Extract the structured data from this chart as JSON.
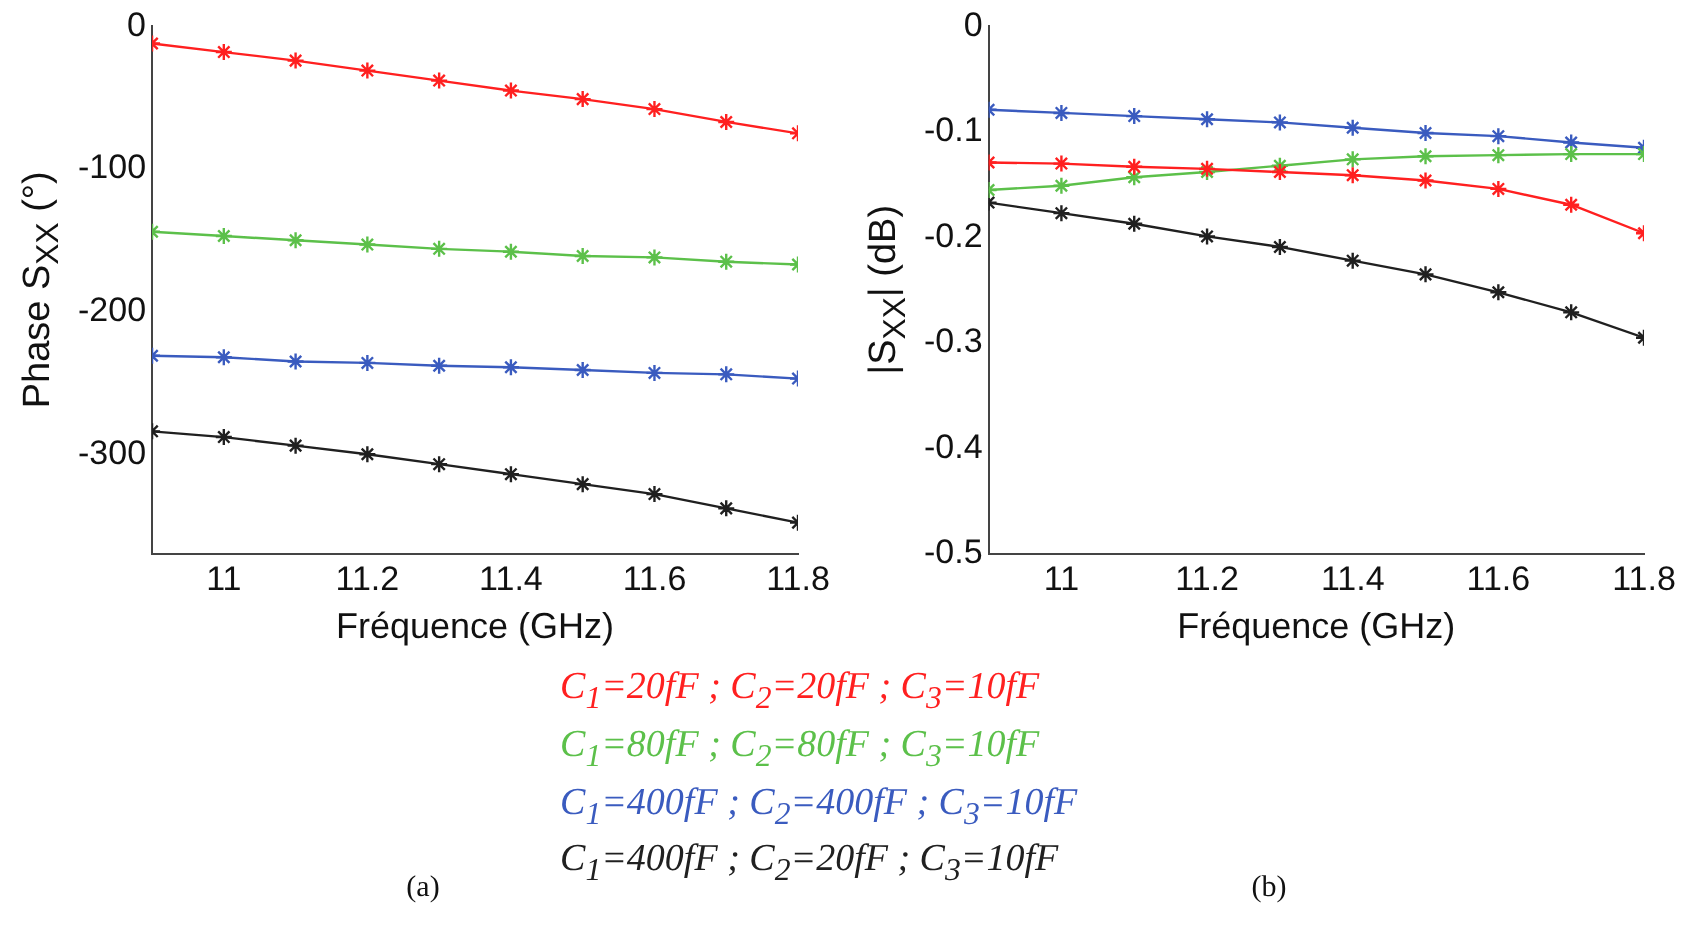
{
  "chart_data": [
    {
      "type": "line",
      "xlabel": "Fréquence (GHz)",
      "ylabel": "Phase S$_{XX}$ (°)",
      "annotations": [
        "(a)"
      ],
      "x": [
        10.9,
        11.0,
        11.1,
        11.2,
        11.3,
        11.4,
        11.5,
        11.6,
        11.7,
        11.8
      ],
      "xlim": [
        10.9,
        11.8
      ],
      "xticks": [
        11,
        11.2,
        11.4,
        11.6,
        11.8
      ],
      "ylim": [
        -370,
        0
      ],
      "yticks": [
        -300,
        -200,
        -100,
        0
      ],
      "marker": "cross",
      "line_style": "solid",
      "legend": "bottom",
      "series": [
        {
          "name": "C$_{1}$=20fF ; C$_{2}$=20fF ; C$_{3}$=10fF",
          "color": "#ff2020",
          "values": [
            -12,
            -18,
            -24,
            -31,
            -38,
            -45,
            -51,
            -58,
            -67,
            -75
          ]
        },
        {
          "name": "C$_{1}$=80fF ; C$_{2}$=80fF ; C$_{3}$=10fF",
          "color": "#5cc04a",
          "values": [
            -144,
            -147,
            -150,
            -153,
            -156,
            -158,
            -161,
            -162,
            -165,
            -167
          ]
        },
        {
          "name": "C$_{1}$=400fF ; C$_{2}$=400fF ; C$_{3}$=10fF",
          "color": "#3a5bbf",
          "values": [
            -231,
            -232,
            -235,
            -236,
            -238,
            -239,
            -241,
            -243,
            -244,
            -247
          ]
        },
        {
          "name": "C$_{1}$=400fF ; C$_{2}$=20fF ; C$_{3}$=10fF",
          "color": "#202020",
          "values": [
            -284,
            -288,
            -294,
            -300,
            -307,
            -314,
            -321,
            -328,
            -338,
            -348
          ]
        }
      ]
    },
    {
      "type": "line",
      "xlabel": "Fréquence (GHz)",
      "ylabel": "|S$_{XX}$| (dB)",
      "annotations": [
        "(b)"
      ],
      "x": [
        10.9,
        11.0,
        11.1,
        11.2,
        11.3,
        11.4,
        11.5,
        11.6,
        11.7,
        11.8
      ],
      "xlim": [
        10.9,
        11.8
      ],
      "xticks": [
        11,
        11.2,
        11.4,
        11.6,
        11.8
      ],
      "ylim": [
        -0.5,
        0
      ],
      "yticks": [
        -0.5,
        -0.4,
        -0.3,
        -0.2,
        -0.1,
        0
      ],
      "marker": "cross",
      "line_style": "solid",
      "series": [
        {
          "color": "#ff2020",
          "values": [
            -0.129,
            -0.13,
            -0.133,
            -0.135,
            -0.138,
            -0.141,
            -0.146,
            -0.154,
            -0.169,
            -0.196
          ]
        },
        {
          "color": "#5cc04a",
          "values": [
            -0.155,
            -0.151,
            -0.143,
            -0.138,
            -0.132,
            -0.126,
            -0.123,
            -0.122,
            -0.121,
            -0.121
          ]
        },
        {
          "color": "#3a5bbf",
          "values": [
            -0.079,
            -0.082,
            -0.085,
            -0.088,
            -0.091,
            -0.096,
            -0.101,
            -0.104,
            -0.11,
            -0.115
          ]
        },
        {
          "color": "#202020",
          "values": [
            -0.167,
            -0.177,
            -0.187,
            -0.199,
            -0.209,
            -0.222,
            -0.235,
            -0.252,
            -0.271,
            -0.295
          ]
        }
      ]
    }
  ]
}
